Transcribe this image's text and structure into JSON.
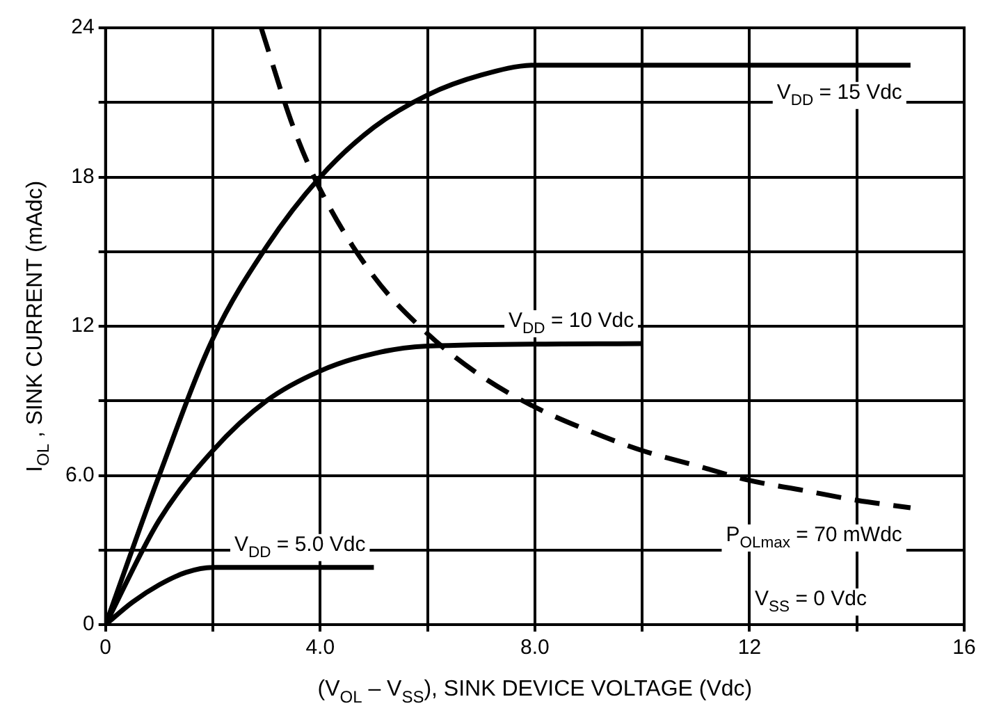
{
  "chart_data": {
    "type": "line",
    "xlabel": "(V$_{OL}$ – V$_{SS}$), SINK DEVICE VOLTAGE (Vdc)",
    "ylabel": "I$_{OL}$ , SINK CURRENT (mAdc)",
    "xlim": [
      0,
      16
    ],
    "ylim": [
      0,
      24
    ],
    "xticks": [
      0,
      {
        "value": 2,
        "label": null
      },
      {
        "value": 4,
        "label": "4.0"
      },
      {
        "value": 6,
        "label": null
      },
      {
        "value": 8,
        "label": "8.0"
      },
      {
        "value": 10,
        "label": null
      },
      12,
      {
        "value": 14,
        "label": null
      },
      16
    ],
    "yticks": [
      0,
      {
        "value": 3,
        "label": null
      },
      {
        "value": 6,
        "label": "6.0"
      },
      {
        "value": 9,
        "label": null
      },
      12,
      {
        "value": 15,
        "label": null
      },
      18,
      {
        "value": 21,
        "label": null
      },
      24
    ],
    "grid": true,
    "legend": false,
    "marker": "none",
    "line_style": "solid",
    "series": [
      {
        "name": "V$_{DD}$ = 15 Vdc",
        "color": "#000000",
        "x": [
          0,
          1,
          2,
          3,
          4,
          5,
          6,
          7,
          8,
          15
        ],
        "values": [
          0,
          6,
          11.5,
          15.2,
          18,
          20,
          21.3,
          22.1,
          22.5,
          22.5
        ]
      },
      {
        "name": "V$_{DD}$ = 10 Vdc",
        "color": "#000000",
        "x": [
          0,
          1,
          2,
          3,
          4,
          5,
          6,
          10
        ],
        "values": [
          0,
          4.2,
          7,
          9,
          10.2,
          10.9,
          11.2,
          11.3
        ]
      },
      {
        "name": "V$_{DD}$ = 5.0 Vdc",
        "color": "#000000",
        "x": [
          0,
          0.5,
          1,
          1.5,
          2,
          5
        ],
        "values": [
          0,
          0.9,
          1.6,
          2.1,
          2.3,
          2.3
        ]
      },
      {
        "name": "P$_{OLmax}$ = 70 mWdc",
        "color": "#000000",
        "line_style": "dashed",
        "x": [
          2.9,
          3.5,
          4,
          5,
          6,
          7,
          8,
          9,
          10,
          11,
          12,
          13,
          14,
          15
        ],
        "values": [
          24,
          20,
          17.5,
          14,
          11.7,
          10,
          8.75,
          7.8,
          7,
          6.4,
          5.8,
          5.4,
          5,
          4.7
        ]
      }
    ],
    "annotations": [
      "V$_{SS}$ = 0 Vdc"
    ]
  }
}
